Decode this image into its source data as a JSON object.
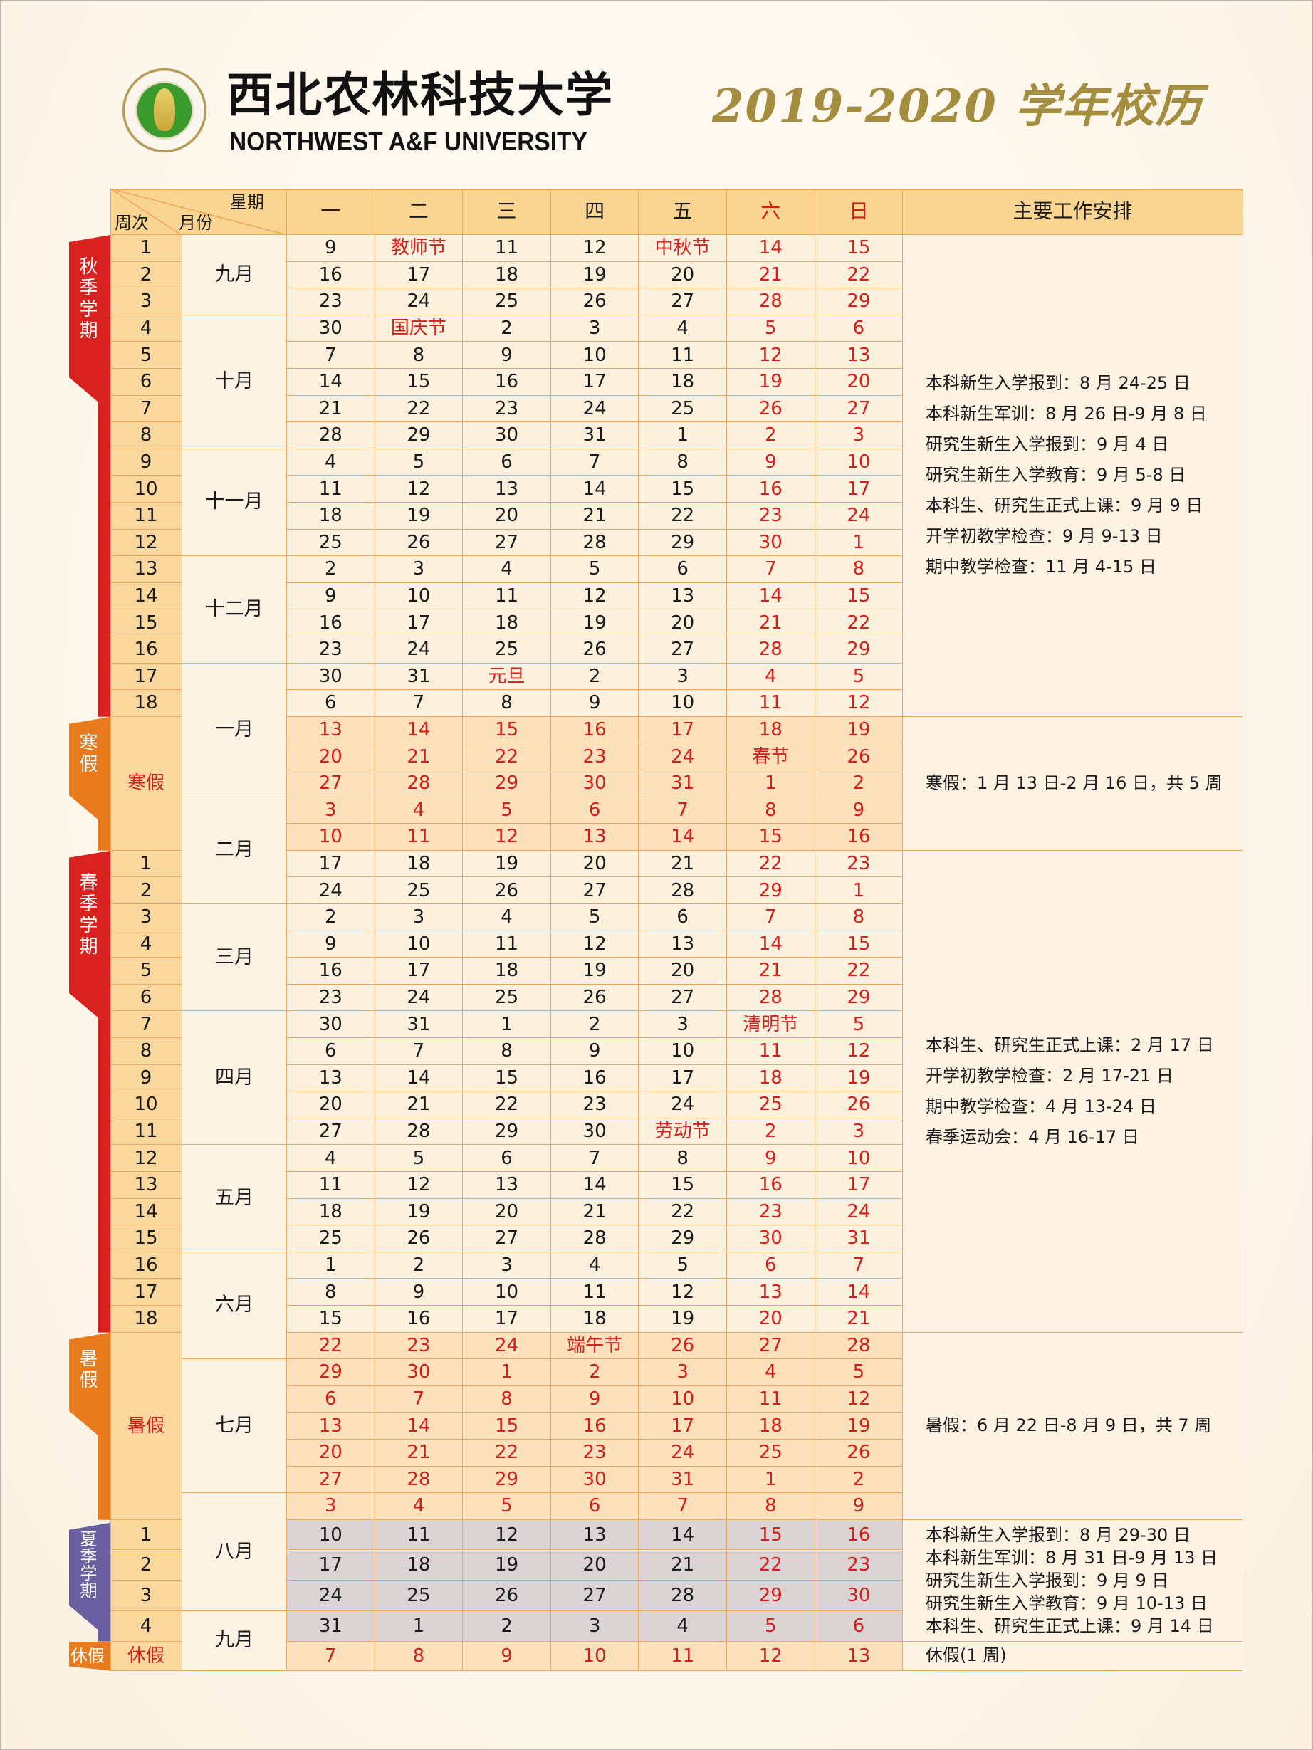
{
  "header": {
    "logo_text": "西北农林科技大学 NORTHWEST A&F UNIVERSITY",
    "university_cn": "西北农林科技大学",
    "university_en": "NORTHWEST A&F UNIVERSITY",
    "title": "2019-2020 学年校历"
  },
  "colors": {
    "red": "#d4201c",
    "term_tab": "#d7221f",
    "vacation_tab": "#e87b1e",
    "summer_tab": "#6a5fa0",
    "border": "#efa65e",
    "title_gold": "#a48d3f"
  },
  "table": {
    "corner": {
      "weekday": "星期",
      "week": "周次",
      "month": "月份"
    },
    "weekdays": [
      "一",
      "二",
      "三",
      "四",
      "五",
      "六",
      "日"
    ],
    "notes_header": "主要工作安排",
    "sections": [
      {
        "tab": "秋季学期",
        "tab_kind": "term",
        "kind": "term",
        "week_label": null,
        "rows": [
          {
            "week": "1",
            "days": [
              "9",
              "教师节",
              "11",
              "12",
              "中秋节",
              "14",
              "15"
            ]
          },
          {
            "week": "2",
            "days": [
              "16",
              "17",
              "18",
              "19",
              "20",
              "21",
              "22"
            ]
          },
          {
            "week": "3",
            "days": [
              "23",
              "24",
              "25",
              "26",
              "27",
              "28",
              "29"
            ]
          },
          {
            "week": "4",
            "days": [
              "30",
              "国庆节",
              "2",
              "3",
              "4",
              "5",
              "6"
            ]
          },
          {
            "week": "5",
            "days": [
              "7",
              "8",
              "9",
              "10",
              "11",
              "12",
              "13"
            ]
          },
          {
            "week": "6",
            "days": [
              "14",
              "15",
              "16",
              "17",
              "18",
              "19",
              "20"
            ]
          },
          {
            "week": "7",
            "days": [
              "21",
              "22",
              "23",
              "24",
              "25",
              "26",
              "27"
            ]
          },
          {
            "week": "8",
            "days": [
              "28",
              "29",
              "30",
              "31",
              "1",
              "2",
              "3"
            ]
          },
          {
            "week": "9",
            "days": [
              "4",
              "5",
              "6",
              "7",
              "8",
              "9",
              "10"
            ]
          },
          {
            "week": "10",
            "days": [
              "11",
              "12",
              "13",
              "14",
              "15",
              "16",
              "17"
            ]
          },
          {
            "week": "11",
            "days": [
              "18",
              "19",
              "20",
              "21",
              "22",
              "23",
              "24"
            ]
          },
          {
            "week": "12",
            "days": [
              "25",
              "26",
              "27",
              "28",
              "29",
              "30",
              "1"
            ]
          },
          {
            "week": "13",
            "days": [
              "2",
              "3",
              "4",
              "5",
              "6",
              "7",
              "8"
            ]
          },
          {
            "week": "14",
            "days": [
              "9",
              "10",
              "11",
              "12",
              "13",
              "14",
              "15"
            ]
          },
          {
            "week": "15",
            "days": [
              "16",
              "17",
              "18",
              "19",
              "20",
              "21",
              "22"
            ]
          },
          {
            "week": "16",
            "days": [
              "23",
              "24",
              "25",
              "26",
              "27",
              "28",
              "29"
            ]
          },
          {
            "week": "17",
            "days": [
              "30",
              "31",
              "元旦",
              "2",
              "3",
              "4",
              "5"
            ]
          },
          {
            "week": "18",
            "days": [
              "6",
              "7",
              "8",
              "9",
              "10",
              "11",
              "12"
            ]
          }
        ],
        "notes": [
          "本科新生入学报到：8 月 24-25 日",
          "本科新生军训：8 月 26 日-9 月 8 日",
          "研究生新生入学报到：9 月 4 日",
          "研究生新生入学教育：9 月 5-8 日",
          "本科生、研究生正式上课：9 月 9 日",
          "开学初教学检查：9 月 9-13 日",
          "期中教学检查：11 月 4-15 日"
        ]
      },
      {
        "tab": "寒假",
        "tab_kind": "vacation",
        "kind": "vacation",
        "week_label": "寒假",
        "rows": [
          {
            "days": [
              "13",
              "14",
              "15",
              "16",
              "17",
              "18",
              "19"
            ]
          },
          {
            "days": [
              "20",
              "21",
              "22",
              "23",
              "24",
              "春节",
              "26"
            ]
          },
          {
            "days": [
              "27",
              "28",
              "29",
              "30",
              "31",
              "1",
              "2"
            ]
          },
          {
            "days": [
              "3",
              "4",
              "5",
              "6",
              "7",
              "8",
              "9"
            ]
          },
          {
            "days": [
              "10",
              "11",
              "12",
              "13",
              "14",
              "15",
              "16"
            ]
          }
        ],
        "notes": [
          "寒假：1 月 13 日-2 月 16 日，共 5 周"
        ]
      },
      {
        "tab": "春季学期",
        "tab_kind": "term",
        "kind": "term",
        "week_label": null,
        "rows": [
          {
            "week": "1",
            "days": [
              "17",
              "18",
              "19",
              "20",
              "21",
              "22",
              "23"
            ]
          },
          {
            "week": "2",
            "days": [
              "24",
              "25",
              "26",
              "27",
              "28",
              "29",
              "1"
            ]
          },
          {
            "week": "3",
            "days": [
              "2",
              "3",
              "4",
              "5",
              "6",
              "7",
              "8"
            ]
          },
          {
            "week": "4",
            "days": [
              "9",
              "10",
              "11",
              "12",
              "13",
              "14",
              "15"
            ]
          },
          {
            "week": "5",
            "days": [
              "16",
              "17",
              "18",
              "19",
              "20",
              "21",
              "22"
            ]
          },
          {
            "week": "6",
            "days": [
              "23",
              "24",
              "25",
              "26",
              "27",
              "28",
              "29"
            ]
          },
          {
            "week": "7",
            "days": [
              "30",
              "31",
              "1",
              "2",
              "3",
              "清明节",
              "5"
            ]
          },
          {
            "week": "8",
            "days": [
              "6",
              "7",
              "8",
              "9",
              "10",
              "11",
              "12"
            ]
          },
          {
            "week": "9",
            "days": [
              "13",
              "14",
              "15",
              "16",
              "17",
              "18",
              "19"
            ]
          },
          {
            "week": "10",
            "days": [
              "20",
              "21",
              "22",
              "23",
              "24",
              "25",
              "26"
            ]
          },
          {
            "week": "11",
            "days": [
              "27",
              "28",
              "29",
              "30",
              "劳动节",
              "2",
              "3"
            ]
          },
          {
            "week": "12",
            "days": [
              "4",
              "5",
              "6",
              "7",
              "8",
              "9",
              "10"
            ]
          },
          {
            "week": "13",
            "days": [
              "11",
              "12",
              "13",
              "14",
              "15",
              "16",
              "17"
            ]
          },
          {
            "week": "14",
            "days": [
              "18",
              "19",
              "20",
              "21",
              "22",
              "23",
              "24"
            ]
          },
          {
            "week": "15",
            "days": [
              "25",
              "26",
              "27",
              "28",
              "29",
              "30",
              "31"
            ]
          },
          {
            "week": "16",
            "days": [
              "1",
              "2",
              "3",
              "4",
              "5",
              "6",
              "7"
            ]
          },
          {
            "week": "17",
            "days": [
              "8",
              "9",
              "10",
              "11",
              "12",
              "13",
              "14"
            ]
          },
          {
            "week": "18",
            "days": [
              "15",
              "16",
              "17",
              "18",
              "19",
              "20",
              "21"
            ]
          }
        ],
        "notes": [
          "本科生、研究生正式上课：2 月 17 日",
          "开学初教学检查：2 月 17-21 日",
          "期中教学检查：4 月 13-24 日",
          "春季运动会：4 月 16-17 日"
        ]
      },
      {
        "tab": "暑假",
        "tab_kind": "vacation",
        "kind": "vacation",
        "week_label": "暑假",
        "rows": [
          {
            "days": [
              "22",
              "23",
              "24",
              "端午节",
              "26",
              "27",
              "28"
            ]
          },
          {
            "days": [
              "29",
              "30",
              "1",
              "2",
              "3",
              "4",
              "5"
            ]
          },
          {
            "days": [
              "6",
              "7",
              "8",
              "9",
              "10",
              "11",
              "12"
            ]
          },
          {
            "days": [
              "13",
              "14",
              "15",
              "16",
              "17",
              "18",
              "19"
            ]
          },
          {
            "days": [
              "20",
              "21",
              "22",
              "23",
              "24",
              "25",
              "26"
            ]
          },
          {
            "days": [
              "27",
              "28",
              "29",
              "30",
              "31",
              "1",
              "2"
            ]
          },
          {
            "days": [
              "3",
              "4",
              "5",
              "6",
              "7",
              "8",
              "9"
            ]
          }
        ],
        "notes": [
          "暑假：6 月 22 日-8 月 9 日，共 7 周"
        ]
      },
      {
        "tab": "夏季学期",
        "tab_kind": "summer",
        "kind": "summer",
        "week_label": null,
        "rows": [
          {
            "week": "1",
            "days": [
              "10",
              "11",
              "12",
              "13",
              "14",
              "15",
              "16"
            ]
          },
          {
            "week": "2",
            "days": [
              "17",
              "18",
              "19",
              "20",
              "21",
              "22",
              "23"
            ]
          },
          {
            "week": "3",
            "days": [
              "24",
              "25",
              "26",
              "27",
              "28",
              "29",
              "30"
            ]
          },
          {
            "week": "4",
            "days": [
              "31",
              "1",
              "2",
              "3",
              "4",
              "5",
              "6"
            ]
          }
        ],
        "notes": [
          "本科新生入学报到：8 月 29-30 日",
          "本科新生军训：8 月 31 日-9 月 13 日",
          "研究生新生入学报到：9 月 9 日",
          "研究生新生入学教育：9 月 10-13 日",
          "本科生、研究生正式上课：9 月 14 日"
        ]
      },
      {
        "tab": "休假",
        "tab_kind": "rest",
        "kind": "vacation",
        "week_label": "休假",
        "rows": [
          {
            "days": [
              "7",
              "8",
              "9",
              "10",
              "11",
              "12",
              "13"
            ]
          }
        ],
        "notes": [
          "休假(1 周)"
        ]
      }
    ],
    "months": [
      {
        "label": "九月",
        "rows": 3
      },
      {
        "label": "十月",
        "rows": 5
      },
      {
        "label": "十一月",
        "rows": 4
      },
      {
        "label": "十二月",
        "rows": 4
      },
      {
        "label": "一月",
        "rows": 5
      },
      {
        "label": "二月",
        "rows": 4
      },
      {
        "label": "三月",
        "rows": 4
      },
      {
        "label": "四月",
        "rows": 5
      },
      {
        "label": "五月",
        "rows": 4
      },
      {
        "label": "六月",
        "rows": 4
      },
      {
        "label": "七月",
        "rows": 5
      },
      {
        "label": "八月",
        "rows": 4
      },
      {
        "label": "九月",
        "rows": 2
      }
    ]
  }
}
